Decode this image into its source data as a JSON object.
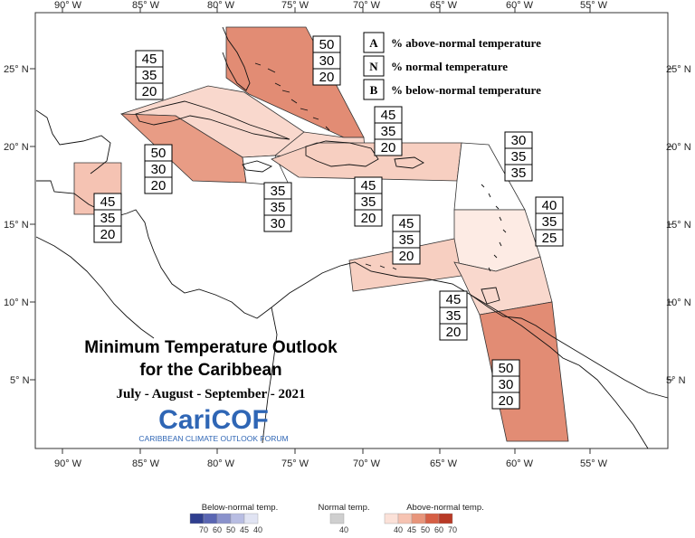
{
  "map": {
    "title_line1": "Minimum Temperature Outlook",
    "title_line2": "for the Caribbean",
    "period": "July - August - September - 2021",
    "logo_text": "CariCOF",
    "logo_subtitle": "CARIBBEAN CLIMATE OUTLOOK FORUM",
    "lon_ticks": [
      "90° W",
      "85° W",
      "80° W",
      "75° W",
      "70° W",
      "65° W",
      "60° W",
      "55° W"
    ],
    "lat_ticks": [
      "25° N",
      "20° N",
      "15° N",
      "10° N",
      "5° N"
    ]
  },
  "key": [
    {
      "letter": "A",
      "text": "% above-normal temperature"
    },
    {
      "letter": "N",
      "text": "% normal temperature"
    },
    {
      "letter": "B",
      "text": "% below-normal temperature"
    }
  ],
  "regions": [
    {
      "name": "bahamas",
      "A": "50",
      "N": "30",
      "B": "20",
      "color": "#e28c74"
    },
    {
      "name": "cuba",
      "A": "45",
      "N": "35",
      "B": "20",
      "color": "#f9d8cd"
    },
    {
      "name": "cayman-jamaica-sea",
      "A": "50",
      "N": "30",
      "B": "20",
      "color": "#e89c85"
    },
    {
      "name": "belize",
      "A": "45",
      "N": "35",
      "B": "20",
      "color": "#f5c3b3"
    },
    {
      "name": "jamaica",
      "A": "35",
      "N": "35",
      "B": "30",
      "color": "#ffffff"
    },
    {
      "name": "hispaniola-north",
      "A": "45",
      "N": "35",
      "B": "20",
      "color": "#f9d8cd"
    },
    {
      "name": "hispaniola-puerto-rico",
      "A": "45",
      "N": "35",
      "B": "20",
      "color": "#f7cfc1"
    },
    {
      "name": "leeward-islands",
      "A": "30",
      "N": "35",
      "B": "35",
      "color": "#ffffff"
    },
    {
      "name": "windward-islands",
      "A": "40",
      "N": "35",
      "B": "25",
      "color": "#fdebe4"
    },
    {
      "name": "abc-islands",
      "A": "45",
      "N": "35",
      "B": "20",
      "color": "#f7cfc1"
    },
    {
      "name": "trinidad",
      "A": "45",
      "N": "35",
      "B": "20",
      "color": "#f9d8cd"
    },
    {
      "name": "guianas",
      "A": "50",
      "N": "30",
      "B": "20",
      "color": "#e28c74"
    }
  ],
  "legend": {
    "below_title": "Below-normal temp.",
    "normal_title": "Normal temp.",
    "above_title": "Above-normal temp.",
    "below_labels": [
      "70",
      "60",
      "50",
      "45",
      "40"
    ],
    "normal_labels": [
      "40"
    ],
    "above_labels": [
      "40",
      "45",
      "50",
      "60",
      "70"
    ],
    "below_colors": [
      "#2f3f8f",
      "#5a66b3",
      "#8a92cc",
      "#b8bde2",
      "#e1e4f3"
    ],
    "normal_colors": [
      "#cfcfcf"
    ],
    "above_colors": [
      "#fbe1d8",
      "#f6c3b2",
      "#e8957b",
      "#d65f45",
      "#b83a26"
    ]
  }
}
